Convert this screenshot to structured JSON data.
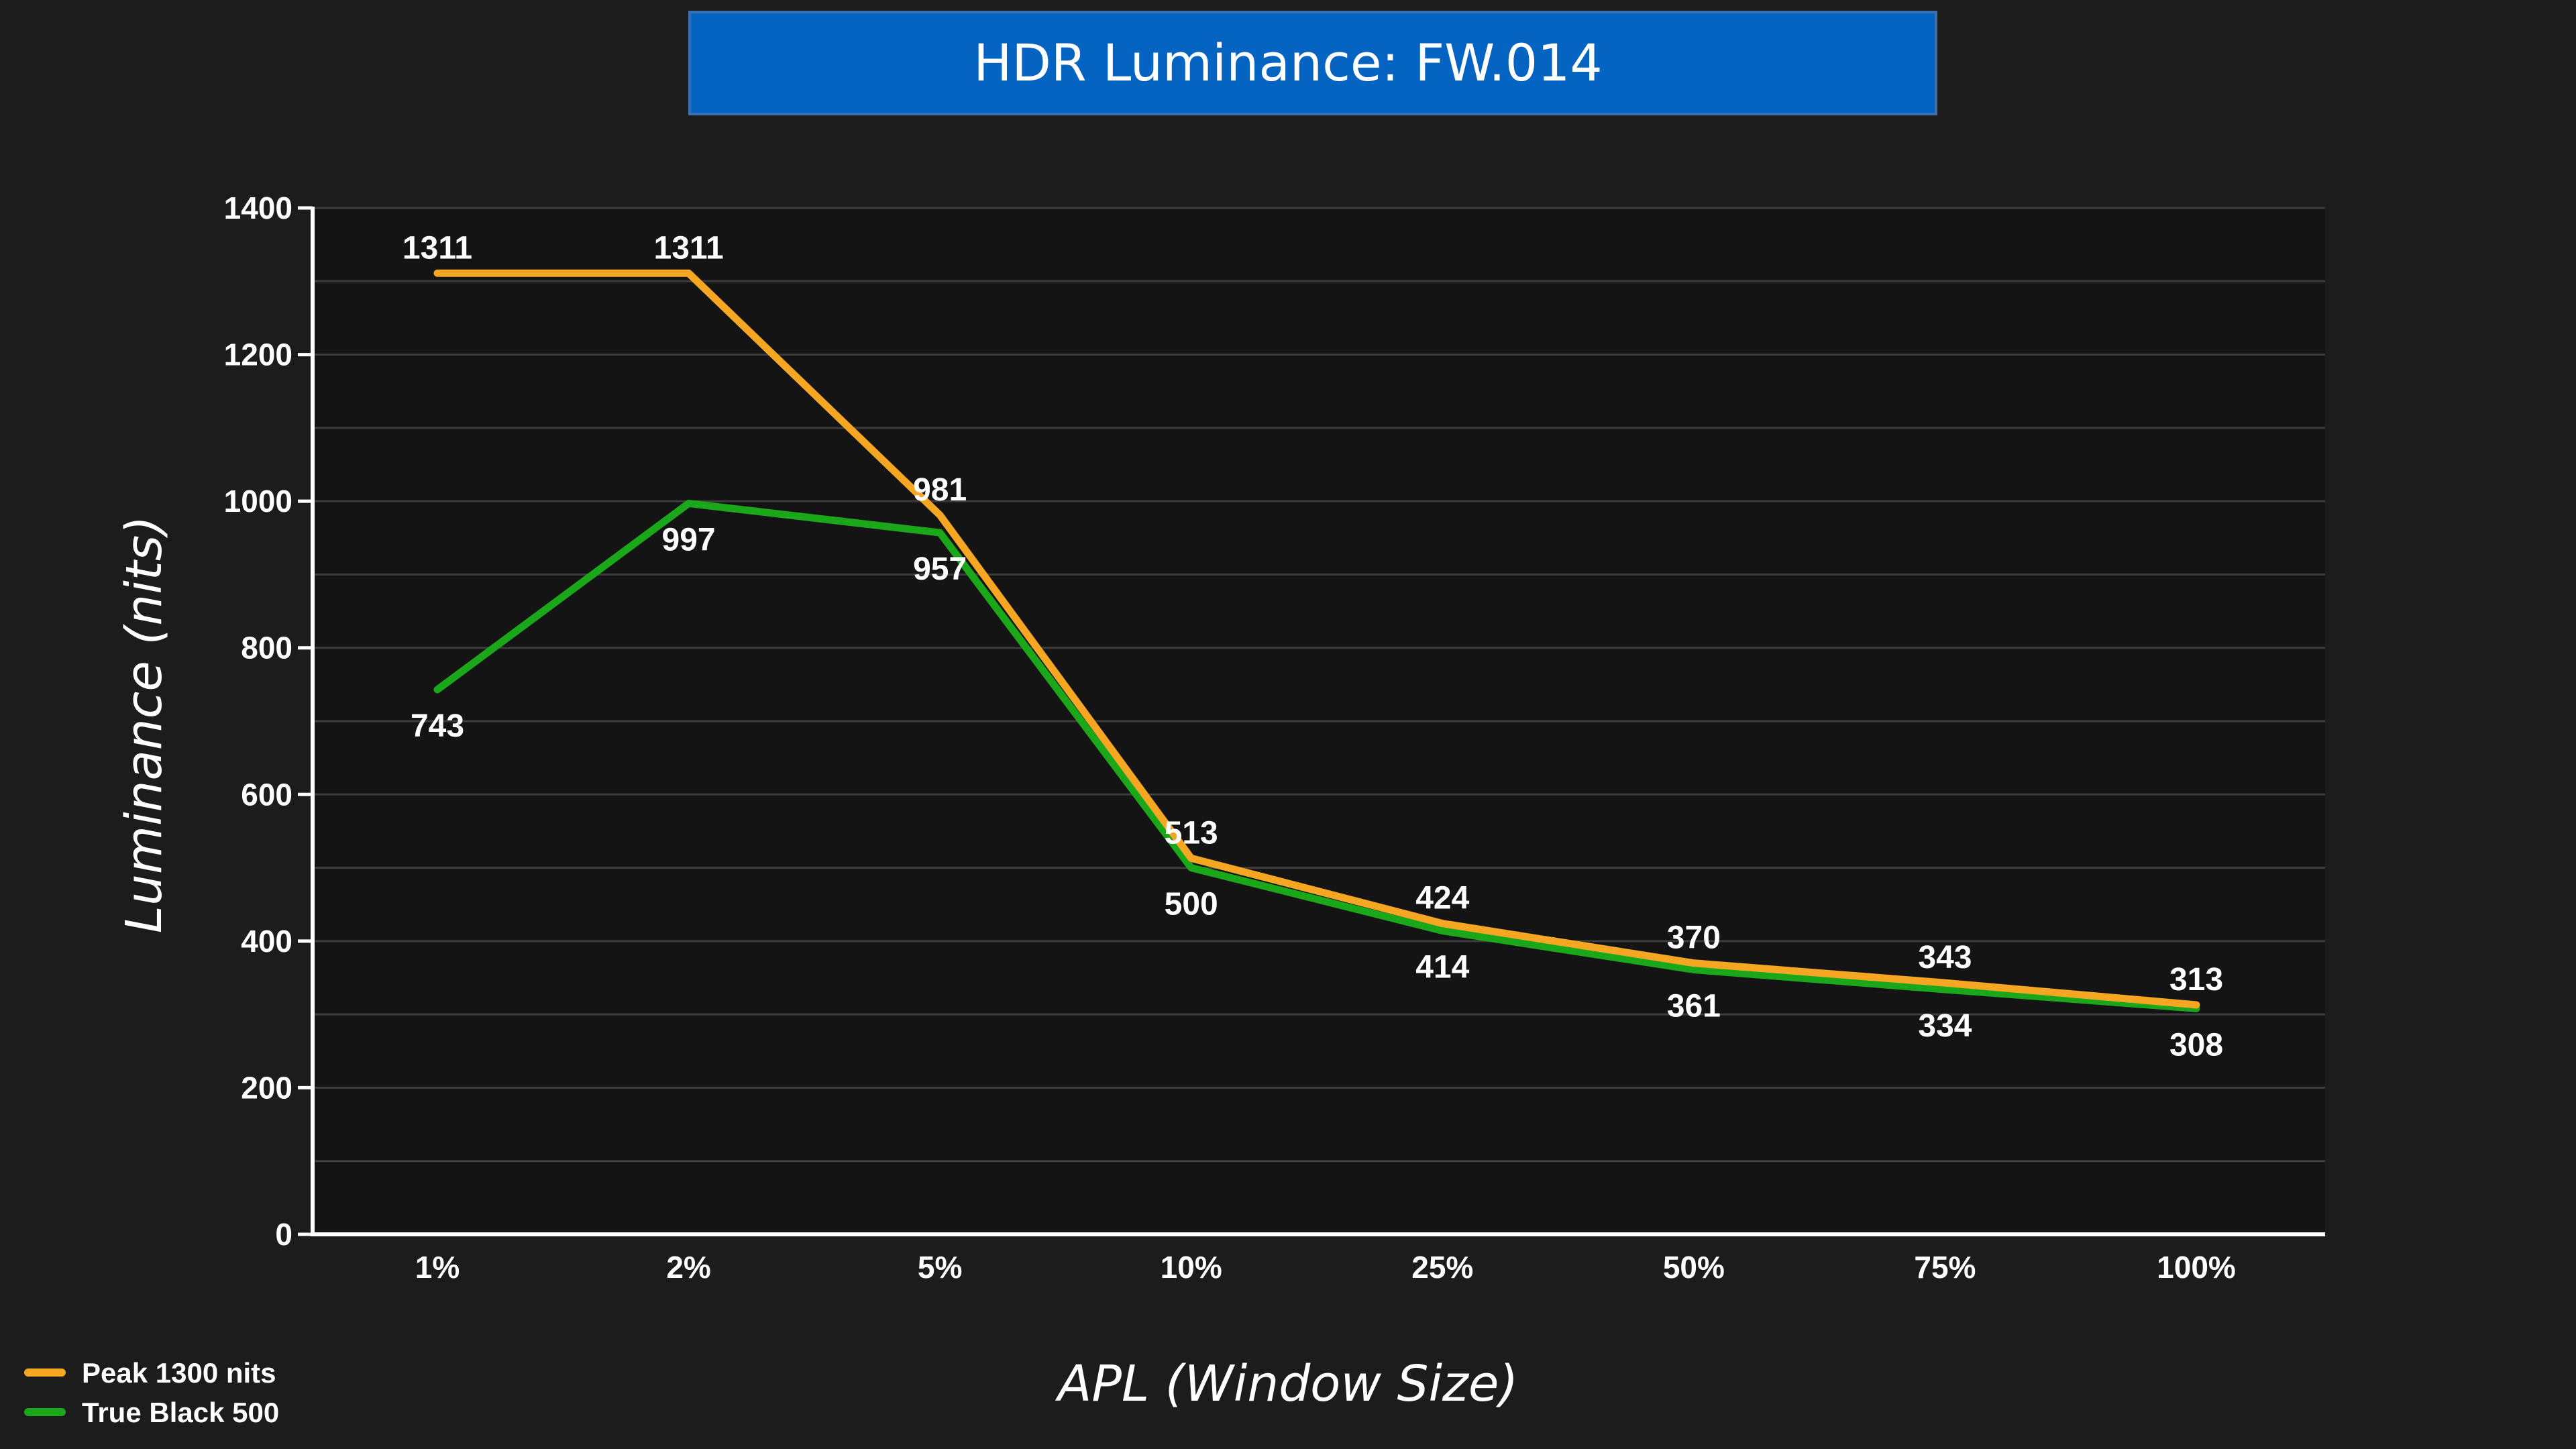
{
  "chart_data": {
    "type": "line",
    "title": "HDR Luminance: FW.014",
    "xlabel": "APL (Window Size)",
    "ylabel": "Luminance (nits)",
    "categories": [
      "1%",
      "2%",
      "5%",
      "10%",
      "25%",
      "50%",
      "75%",
      "100%"
    ],
    "ylim": [
      0,
      1400
    ],
    "yticks": [
      0,
      200,
      400,
      600,
      800,
      1000,
      1200,
      1400
    ],
    "grid": true,
    "legend": "bottom-left",
    "series": [
      {
        "name": "Peak 1300 nits",
        "color": "#f5a623",
        "values": [
          1311,
          1311,
          981,
          513,
          424,
          370,
          343,
          313
        ],
        "labels": [
          "1311",
          "1311",
          "981",
          "513",
          "424",
          "370",
          "343",
          "313"
        ]
      },
      {
        "name": "True Black 500",
        "color": "#1aa81a",
        "values": [
          743,
          997,
          957,
          500,
          414,
          361,
          334,
          308
        ],
        "labels": [
          "743",
          "997",
          "957",
          "500",
          "414",
          "361",
          "334",
          "308"
        ]
      }
    ]
  },
  "colors": {
    "background": "#1c1c1c",
    "plot_background": "#141414",
    "title_bar": "#0563c1",
    "title_bar_border": "#3a6fb0",
    "gridline": "#3c3c3c",
    "axis": "#ffffff",
    "text": "#ffffff"
  }
}
